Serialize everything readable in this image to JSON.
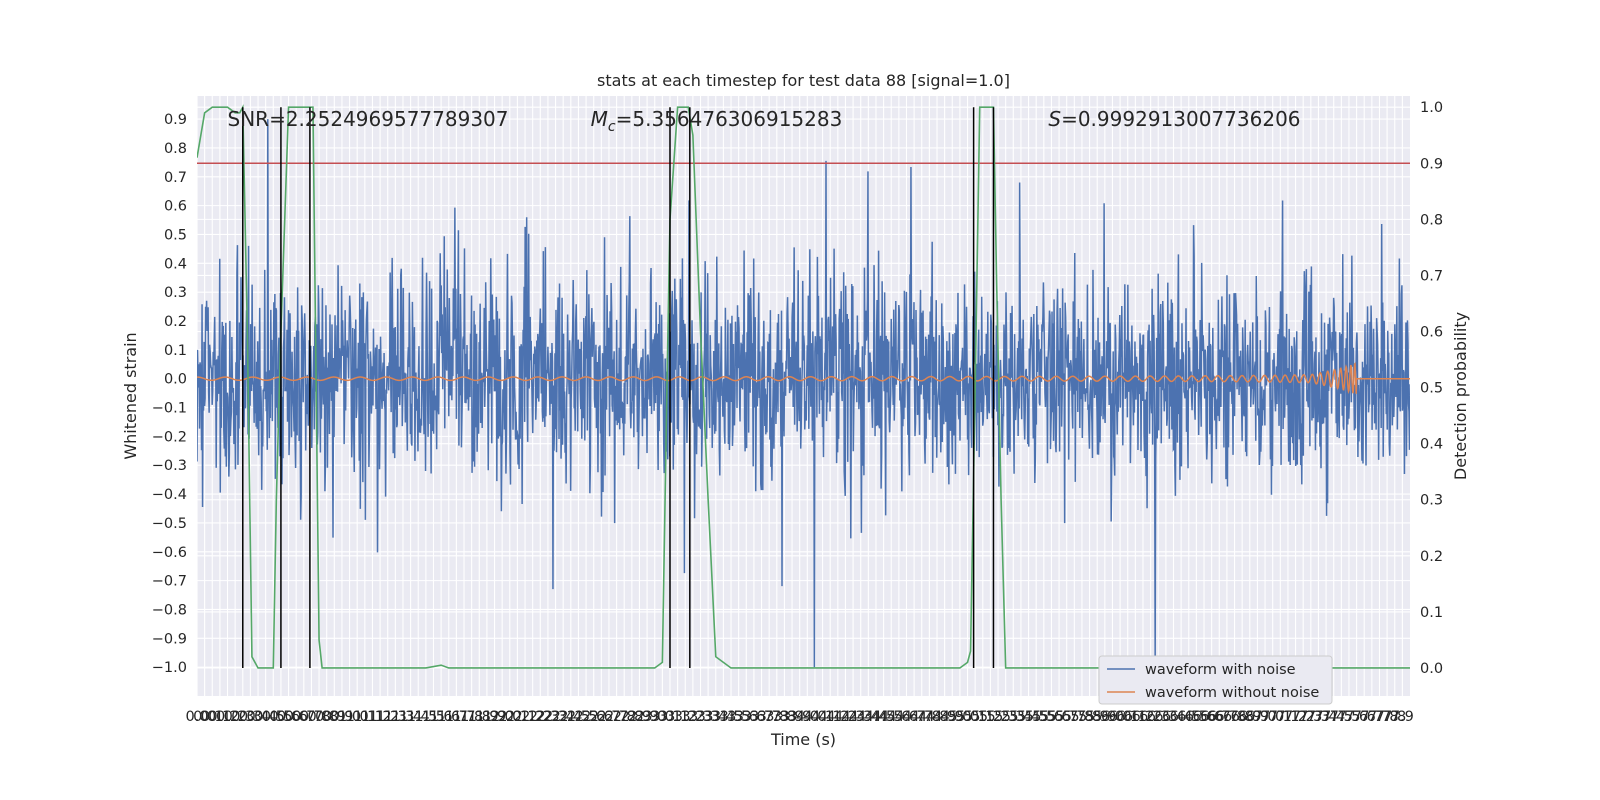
{
  "chart_data": {
    "type": "line",
    "title": "stats at each timestep for test data 88 [signal=1.0]",
    "xlabel": "Time (s)",
    "ylabel": "Whitened strain",
    "ylabel_right": "Detection probability",
    "xlim": [
      0.0,
      7.95
    ],
    "ylim": [
      -1.1,
      0.98
    ],
    "ylim_right": [
      -0.05,
      1.02
    ],
    "x_ticks": [
      0.0,
      0.05,
      0.1,
      0.15,
      0.2,
      0.25,
      0.3,
      0.35,
      0.4,
      0.45,
      0.5,
      0.55,
      0.6,
      0.65,
      0.7,
      0.75,
      0.8,
      0.85,
      0.9,
      0.95,
      1.0,
      1.05,
      1.1,
      1.15,
      1.2,
      1.25,
      1.3,
      1.35,
      1.4,
      1.45,
      1.5,
      1.55,
      1.6,
      1.65,
      1.7,
      1.75,
      1.8,
      1.85,
      1.9,
      1.95,
      2.0,
      2.05,
      2.1,
      2.15,
      2.2,
      2.25,
      2.3,
      2.35,
      2.4,
      2.45,
      2.5,
      2.55,
      2.6,
      2.65,
      2.7,
      2.75,
      2.8,
      2.85,
      2.9,
      2.95,
      3.0,
      3.05,
      3.1,
      3.15,
      3.2,
      3.25,
      3.3,
      3.35,
      3.4,
      3.45,
      3.5,
      3.55,
      3.6,
      3.65,
      3.7,
      3.75,
      3.8,
      3.85,
      3.9,
      3.95,
      4.0,
      4.05,
      4.1,
      4.15,
      4.2,
      4.25,
      4.3,
      4.35,
      4.4,
      4.45,
      4.5,
      4.55,
      4.6,
      4.65,
      4.7,
      4.75,
      4.8,
      4.85,
      4.9,
      4.95,
      5.0,
      5.05,
      5.1,
      5.15,
      5.2,
      5.25,
      5.3,
      5.35,
      5.4,
      5.45,
      5.5,
      5.55,
      5.6,
      5.65,
      5.7,
      5.75,
      5.8,
      5.85,
      5.9,
      5.95,
      6.0,
      6.05,
      6.1,
      6.15,
      6.2,
      6.25,
      6.3,
      6.35,
      6.4,
      6.45,
      6.5,
      6.55,
      6.6,
      6.65,
      6.7,
      6.75,
      6.8,
      6.85,
      6.9,
      6.95,
      7.0,
      7.05,
      7.1,
      7.15,
      7.2,
      7.25,
      7.3,
      7.35,
      7.4,
      7.45,
      7.5,
      7.55,
      7.6,
      7.65,
      7.7,
      7.75,
      7.8,
      7.85,
      7.9
    ],
    "x_tick_labels": [
      "0.0",
      "0.0",
      "0.1",
      "0.1",
      "0.2",
      "0.2",
      "0.3",
      "0.3",
      "0.4",
      "0.4",
      "0.5",
      "0.5",
      "0.6",
      "0.6",
      "0.7",
      "0.7",
      "0.8",
      "0.8",
      "0.9",
      "0.9",
      "1.0",
      "1.0",
      "1.1",
      "1.1",
      "1.2",
      "1.2",
      "1.3",
      "1.3",
      "1.4",
      "1.4",
      "1.5",
      "1.5",
      "1.6",
      "1.6",
      "1.7",
      "1.7",
      "1.8",
      "1.8",
      "1.9",
      "1.9",
      "2.0",
      "2.0",
      "2.1",
      "2.1",
      "2.2",
      "2.2",
      "2.3",
      "2.3",
      "2.4",
      "2.4",
      "2.5",
      "2.5",
      "2.6",
      "2.6",
      "2.7",
      "2.7",
      "2.8",
      "2.8",
      "2.9",
      "2.9",
      "3.0",
      "3.0",
      "3.1",
      "3.1",
      "3.2",
      "3.2",
      "3.3",
      "3.3",
      "3.4",
      "3.4",
      "3.5",
      "3.5",
      "3.6",
      "3.6",
      "3.7",
      "3.7",
      "3.8",
      "3.8",
      "3.9",
      "3.9",
      "4.0",
      "4.0",
      "4.1",
      "4.1",
      "4.2",
      "4.2",
      "4.3",
      "4.3",
      "4.4",
      "4.4",
      "4.5",
      "4.5",
      "4.6",
      "4.6",
      "4.7",
      "4.7",
      "4.8",
      "4.8",
      "4.9",
      "4.9",
      "5.0",
      "5.0",
      "5.1",
      "5.1",
      "5.2",
      "5.2",
      "5.3",
      "5.3",
      "5.4",
      "5.4",
      "5.5",
      "5.5",
      "5.6",
      "5.6",
      "5.7",
      "5.7",
      "5.8",
      "5.8",
      "5.9",
      "5.9",
      "6.0",
      "6.0",
      "6.1",
      "6.1",
      "6.2",
      "6.2",
      "6.3",
      "6.3",
      "6.4",
      "6.4",
      "6.5",
      "6.5",
      "6.6",
      "6.6",
      "6.7",
      "6.7",
      "6.8",
      "6.8",
      "6.9",
      "6.9",
      "7.0",
      "7.0",
      "7.1",
      "7.1",
      "7.2",
      "7.2",
      "7.3",
      "7.3",
      "7.4",
      "7.4",
      "7.5",
      "7.5",
      "7.6",
      "7.6",
      "7.7",
      "7.7",
      "7.8",
      "7.8",
      "7.9"
    ],
    "y_ticks": [
      -1.0,
      -0.9,
      -0.8,
      -0.7,
      -0.6,
      -0.5,
      -0.4,
      -0.3,
      -0.2,
      -0.1,
      0.0,
      0.1,
      0.2,
      0.3,
      0.4,
      0.5,
      0.6,
      0.7,
      0.8,
      0.9
    ],
    "y_tick_labels": [
      "−1.0",
      "−0.9",
      "−0.8",
      "−0.7",
      "−0.6",
      "−0.5",
      "−0.4",
      "−0.3",
      "−0.2",
      "−0.1",
      "0.0",
      "0.1",
      "0.2",
      "0.3",
      "0.4",
      "0.5",
      "0.6",
      "0.7",
      "0.8",
      "0.9"
    ],
    "y_right_ticks": [
      0.0,
      0.1,
      0.2,
      0.3,
      0.4,
      0.5,
      0.6,
      0.7,
      0.8,
      0.9,
      1.0
    ],
    "y_right_tick_labels": [
      "0.0",
      "0.1",
      "0.2",
      "0.3",
      "0.4",
      "0.5",
      "0.6",
      "0.7",
      "0.8",
      "0.9",
      "1.0"
    ],
    "annotations": [
      {
        "text": "SNR=2.2524969577789307",
        "x": 0.2,
        "y": 0.9
      },
      {
        "text": "M_c=5.356476306915283",
        "x": 2.58,
        "y": 0.9
      },
      {
        "text": "S=0.9992913007736206",
        "x": 5.58,
        "y": 0.9
      }
    ],
    "threshold": {
      "axis": "right",
      "value": 0.9,
      "color": "#c44e52"
    },
    "vertical_lines": [
      0.3,
      0.55,
      0.74,
      3.1,
      3.23,
      5.09,
      5.22
    ],
    "series": [
      {
        "name": "waveform with noise",
        "color": "#4c72b0",
        "axis": "left",
        "description": "noisy whitened strain, roughly normal with spread about 0.18, spikes up to about 0.9 and down to about -1.0"
      },
      {
        "name": "waveform without noise",
        "color": "#dd8452",
        "axis": "left",
        "description": "chirp signal, amplitude grows from about 0.005 near 0 s to about 0.05 at 7.6 s, then zero"
      },
      {
        "name": "detection probability",
        "color": "#55a868",
        "axis": "right",
        "x": [
          0.0,
          0.05,
          0.1,
          0.15,
          0.2,
          0.25,
          0.28,
          0.3,
          0.33,
          0.36,
          0.4,
          0.46,
          0.5,
          0.52,
          0.55,
          0.6,
          0.62,
          0.64,
          0.66,
          0.68,
          0.72,
          0.76,
          0.8,
          0.82,
          0.85,
          0.9,
          1.0,
          1.5,
          1.6,
          1.65,
          1.7,
          1.8,
          2.0,
          2.5,
          3.0,
          3.05,
          3.08,
          3.1,
          3.15,
          3.18,
          3.22,
          3.25,
          3.3,
          3.35,
          3.4,
          3.45,
          3.5,
          4.0,
          4.5,
          5.0,
          5.05,
          5.07,
          5.1,
          5.13,
          5.18,
          5.22,
          5.24,
          5.27,
          5.3,
          5.35,
          6.0,
          7.0,
          7.95
        ],
        "values": [
          0.91,
          0.99,
          1.0,
          1.0,
          1.0,
          0.99,
          0.99,
          1.0,
          0.6,
          0.02,
          0.0,
          0.0,
          0.0,
          0.3,
          0.6,
          1.0,
          1.0,
          1.0,
          1.0,
          1.0,
          1.0,
          1.0,
          0.05,
          0.0,
          0.0,
          0.0,
          0.0,
          0.0,
          0.005,
          0.0,
          0.0,
          0.0,
          0.0,
          0.0,
          0.0,
          0.01,
          0.5,
          0.8,
          1.0,
          1.0,
          1.0,
          0.95,
          0.6,
          0.3,
          0.02,
          0.01,
          0.0,
          0.0,
          0.0,
          0.0,
          0.01,
          0.03,
          0.5,
          1.0,
          1.0,
          1.0,
          0.7,
          0.3,
          0.0,
          0.0,
          0.0,
          0.0,
          0.0
        ]
      }
    ],
    "legend": {
      "placement": "lower-right",
      "entries": [
        "waveform with noise",
        "waveform without noise"
      ]
    },
    "grid": true
  }
}
